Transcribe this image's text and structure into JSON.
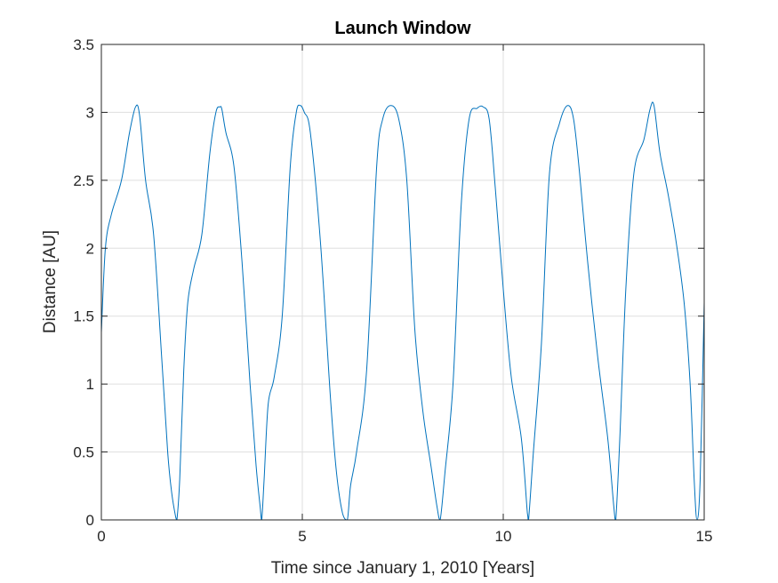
{
  "chart_data": {
    "type": "line",
    "title": "Launch Window",
    "xlabel": "Time since January 1, 2010 [Years]",
    "ylabel": "Distance [AU]",
    "xlim": [
      0,
      15
    ],
    "ylim": [
      0,
      3.5
    ],
    "xticks": [
      0,
      5,
      10,
      15
    ],
    "yticks": [
      0,
      0.5,
      1,
      1.5,
      2,
      2.5,
      3,
      3.5
    ],
    "grid": true,
    "legend": "none",
    "line_color": "#0072BD",
    "series": [
      {
        "x": [
          0,
          0.1,
          0.25,
          0.5,
          0.7,
          0.85,
          0.95,
          1.1,
          1.3,
          1.5,
          1.65,
          1.75,
          1.85,
          1.88,
          1.95,
          2.05,
          2.15,
          2.3,
          2.5,
          2.7,
          2.85,
          2.95,
          3.0,
          3.1,
          3.3,
          3.5,
          3.7,
          3.85,
          3.95,
          3.99,
          4.05,
          4.15,
          4.3,
          4.5,
          4.7,
          4.85,
          4.95,
          5.05,
          5.2,
          5.45,
          5.7,
          5.85,
          6.0,
          6.12,
          6.2,
          6.35,
          6.6,
          6.85,
          7.0,
          7.2,
          7.4,
          7.6,
          7.8,
          8.0,
          8.2,
          8.35,
          8.43,
          8.55,
          8.75,
          8.95,
          9.15,
          9.35,
          9.5,
          9.65,
          9.8,
          10.0,
          10.2,
          10.45,
          10.6,
          10.63,
          10.75,
          10.95,
          11.15,
          11.4,
          11.6,
          11.75,
          11.9,
          12.1,
          12.35,
          12.6,
          12.75,
          12.8,
          12.9,
          13.05,
          13.25,
          13.5,
          13.65,
          13.75,
          13.9,
          14.1,
          14.3,
          14.5,
          14.65,
          14.75,
          14.82,
          14.9,
          15.0
        ],
        "y": [
          1.38,
          2.0,
          2.25,
          2.5,
          2.85,
          3.04,
          2.98,
          2.5,
          2.1,
          1.2,
          0.5,
          0.2,
          0.02,
          0.0,
          0.3,
          1.1,
          1.6,
          1.85,
          2.1,
          2.7,
          3.0,
          3.04,
          3.02,
          2.85,
          2.6,
          1.9,
          1.0,
          0.4,
          0.1,
          0.0,
          0.3,
          0.85,
          1.05,
          1.5,
          2.6,
          3.0,
          3.05,
          3.0,
          2.85,
          2.05,
          0.9,
          0.35,
          0.05,
          0.0,
          0.25,
          0.5,
          1.1,
          2.6,
          2.95,
          3.05,
          2.95,
          2.5,
          1.4,
          0.8,
          0.4,
          0.1,
          0.0,
          0.35,
          1.0,
          2.3,
          2.95,
          3.03,
          3.04,
          2.95,
          2.45,
          1.7,
          1.05,
          0.6,
          0.05,
          0.0,
          0.5,
          1.3,
          2.55,
          2.92,
          3.05,
          2.95,
          2.55,
          1.9,
          1.2,
          0.6,
          0.1,
          0.0,
          0.6,
          1.7,
          2.55,
          2.8,
          3.02,
          3.05,
          2.7,
          2.4,
          2.05,
          1.6,
          1.0,
          0.3,
          0.0,
          0.3,
          1.6
        ]
      }
    ]
  }
}
